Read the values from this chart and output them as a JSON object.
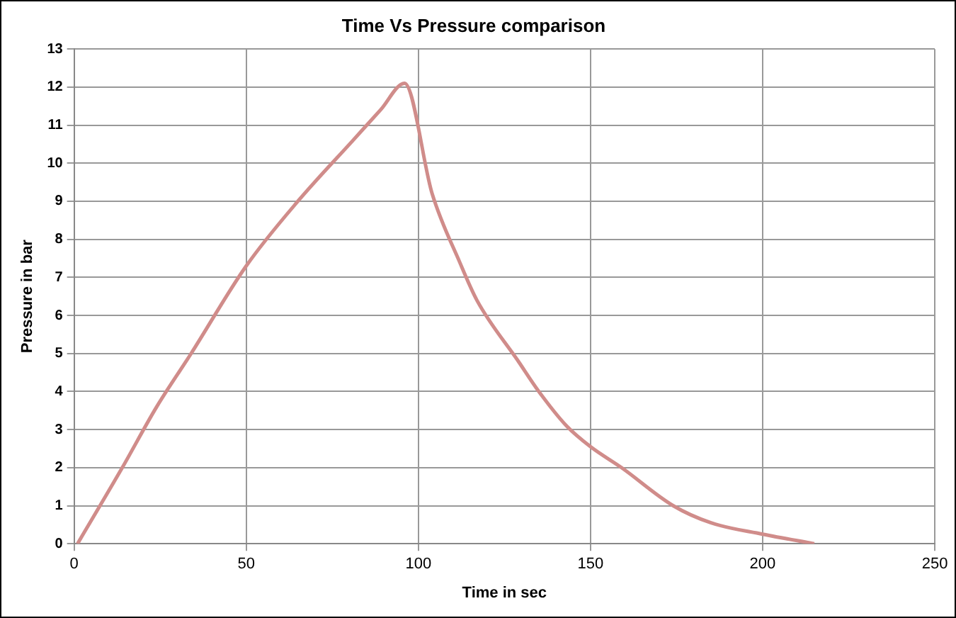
{
  "chart_data": {
    "type": "line",
    "title": "Time Vs Pressure comparison",
    "xlabel": "Time in sec",
    "ylabel": "Pressure in bar",
    "x": [
      1,
      14,
      24,
      34,
      50,
      65,
      81,
      89,
      96,
      104,
      112,
      117,
      129,
      135,
      143,
      150,
      159,
      174,
      185,
      200,
      215
    ],
    "series": [
      {
        "color": "#d08c8a",
        "values": [
          0,
          2.0,
          3.6,
          5.0,
          7.3,
          9.0,
          10.6,
          11.4,
          12.1,
          9.2,
          7.4,
          6.4,
          4.8,
          4.0,
          3.1,
          2.55,
          2.0,
          1.0,
          0.55,
          0.25,
          0
        ]
      }
    ],
    "xlim": [
      0,
      250
    ],
    "xticks": [
      0,
      50,
      100,
      150,
      200,
      250
    ],
    "ylim": [
      0,
      13
    ],
    "yticks": [
      0,
      1,
      2,
      3,
      4,
      5,
      6,
      7,
      8,
      9,
      10,
      11,
      12,
      13
    ],
    "grid": true,
    "legend": false,
    "marker": "none",
    "line_style": "solid"
  }
}
